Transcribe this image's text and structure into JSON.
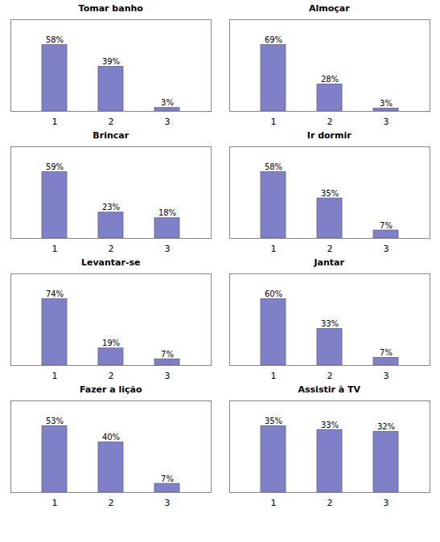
{
  "chart_data": [
    {
      "type": "bar",
      "title": "Tomar banho",
      "categories": [
        "1",
        "2",
        "3"
      ],
      "values": [
        58,
        39,
        3
      ],
      "value_labels": [
        "58%",
        "39%",
        "3%"
      ],
      "color": "#8080c8",
      "ylim": [
        0,
        80.04
      ],
      "data_labels": true,
      "tick_labels": "x"
    },
    {
      "type": "bar",
      "title": "Almoçar",
      "categories": [
        "1",
        "2",
        "3"
      ],
      "values": [
        69,
        28,
        3
      ],
      "value_labels": [
        "69%",
        "28%",
        "3%"
      ],
      "color": "#8080c8",
      "ylim": [
        0,
        95.22
      ],
      "data_labels": true,
      "tick_labels": "x"
    },
    {
      "type": "bar",
      "title": "Brincar",
      "categories": [
        "1",
        "2",
        "3"
      ],
      "values": [
        59,
        23,
        18
      ],
      "value_labels": [
        "59%",
        "23%",
        "18%"
      ],
      "color": "#8080c8",
      "ylim": [
        0,
        81.42
      ],
      "data_labels": true,
      "tick_labels": "x"
    },
    {
      "type": "bar",
      "title": "Ir dormir",
      "categories": [
        "1",
        "2",
        "3"
      ],
      "values": [
        58,
        35,
        7
      ],
      "value_labels": [
        "58%",
        "35%",
        "7%"
      ],
      "color": "#8080c8",
      "ylim": [
        0,
        80.04
      ],
      "data_labels": true,
      "tick_labels": "x"
    },
    {
      "type": "bar",
      "title": "Levantar-se",
      "categories": [
        "1",
        "2",
        "3"
      ],
      "values": [
        74,
        19,
        7
      ],
      "value_labels": [
        "74%",
        "19%",
        "7%"
      ],
      "color": "#8080c8",
      "ylim": [
        0,
        102.12
      ],
      "data_labels": true,
      "tick_labels": "x"
    },
    {
      "type": "bar",
      "title": "Jantar",
      "categories": [
        "1",
        "2",
        "3"
      ],
      "values": [
        60,
        33,
        7
      ],
      "value_labels": [
        "60%",
        "33%",
        "7%"
      ],
      "color": "#8080c8",
      "ylim": [
        0,
        82.8
      ],
      "data_labels": true,
      "tick_labels": "x"
    },
    {
      "type": "bar",
      "title": "Fazer a lição",
      "categories": [
        "1",
        "2",
        "3"
      ],
      "values": [
        53,
        40,
        7
      ],
      "value_labels": [
        "53%",
        "40%",
        "7%"
      ],
      "color": "#8080c8",
      "ylim": [
        0,
        73.14
      ],
      "data_labels": true,
      "tick_labels": "x"
    },
    {
      "type": "bar",
      "title": "Assistir à TV",
      "categories": [
        "1",
        "2",
        "3"
      ],
      "values": [
        35,
        33,
        32
      ],
      "value_labels": [
        "35%",
        "33%",
        "32%"
      ],
      "color": "#8080c8",
      "ylim": [
        0,
        48.3
      ],
      "data_labels": true,
      "tick_labels": "x"
    }
  ]
}
